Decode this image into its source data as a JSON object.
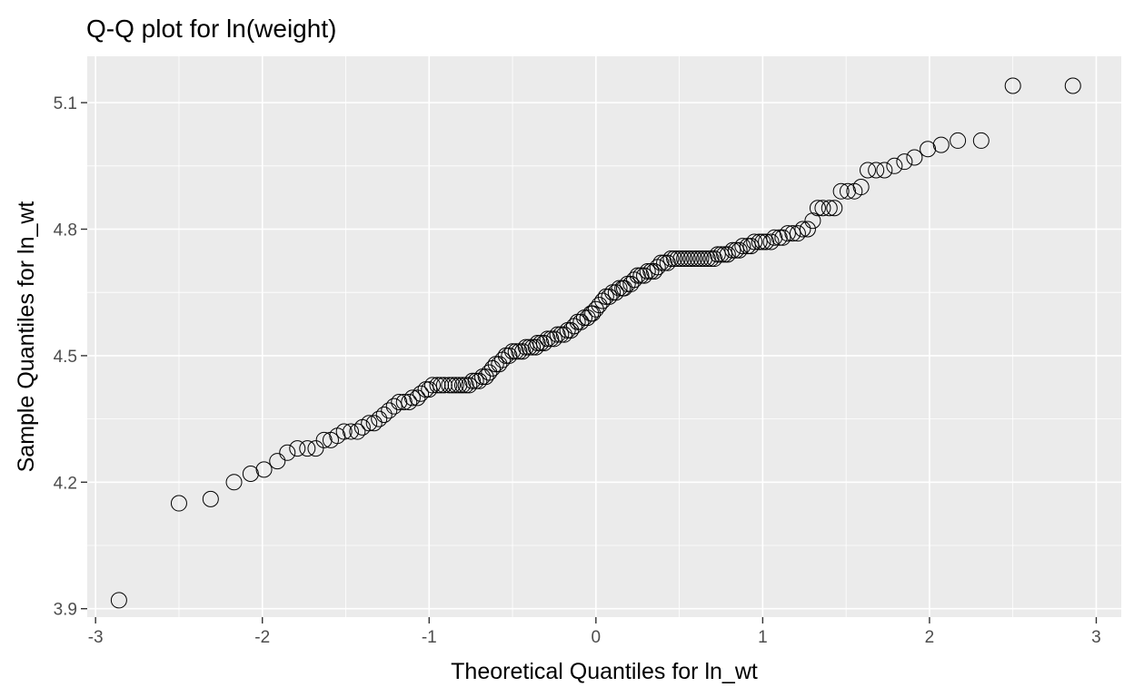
{
  "chart_data": {
    "type": "scatter",
    "title": "Q-Q plot for ln(weight)",
    "xlabel": "Theoretical Quantiles for ln_wt",
    "ylabel": "Sample Quantiles for ln_wt",
    "xlim": [
      -3.05,
      3.15
    ],
    "ylim": [
      3.88,
      5.21
    ],
    "x_ticks": [
      -3,
      -2,
      -1,
      0,
      1,
      2,
      3
    ],
    "x_tick_labels": [
      "-3",
      "-2",
      "-1",
      "0",
      "1",
      "2",
      "3"
    ],
    "y_ticks": [
      3.9,
      4.2,
      4.5,
      4.8,
      5.1
    ],
    "y_tick_labels": [
      "3.9",
      "4.2",
      "4.5",
      "4.8",
      "5.1"
    ],
    "grid": true,
    "legend": "none",
    "colors": {
      "panel": "#ebebeb",
      "grid": "#ffffff",
      "point_stroke": "#000000"
    },
    "points": [
      {
        "x": -2.86,
        "y": 3.92
      },
      {
        "x": -2.5,
        "y": 4.15
      },
      {
        "x": -2.31,
        "y": 4.16
      },
      {
        "x": -2.17,
        "y": 4.2
      },
      {
        "x": -2.07,
        "y": 4.22
      },
      {
        "x": -1.99,
        "y": 4.23
      },
      {
        "x": -1.91,
        "y": 4.25
      },
      {
        "x": -1.85,
        "y": 4.27
      },
      {
        "x": -1.79,
        "y": 4.28
      },
      {
        "x": -1.73,
        "y": 4.28
      },
      {
        "x": -1.68,
        "y": 4.28
      },
      {
        "x": -1.63,
        "y": 4.3
      },
      {
        "x": -1.59,
        "y": 4.3
      },
      {
        "x": -1.55,
        "y": 4.31
      },
      {
        "x": -1.51,
        "y": 4.32
      },
      {
        "x": -1.47,
        "y": 4.32
      },
      {
        "x": -1.43,
        "y": 4.32
      },
      {
        "x": -1.4,
        "y": 4.33
      },
      {
        "x": -1.36,
        "y": 4.34
      },
      {
        "x": -1.33,
        "y": 4.34
      },
      {
        "x": -1.3,
        "y": 4.35
      },
      {
        "x": -1.27,
        "y": 4.36
      },
      {
        "x": -1.24,
        "y": 4.37
      },
      {
        "x": -1.21,
        "y": 4.38
      },
      {
        "x": -1.18,
        "y": 4.39
      },
      {
        "x": -1.15,
        "y": 4.39
      },
      {
        "x": -1.12,
        "y": 4.39
      },
      {
        "x": -1.1,
        "y": 4.4
      },
      {
        "x": -1.07,
        "y": 4.4
      },
      {
        "x": -1.05,
        "y": 4.41
      },
      {
        "x": -1.02,
        "y": 4.42
      },
      {
        "x": -1.0,
        "y": 4.42
      },
      {
        "x": -0.98,
        "y": 4.43
      },
      {
        "x": -0.95,
        "y": 4.43
      },
      {
        "x": -0.93,
        "y": 4.43
      },
      {
        "x": -0.91,
        "y": 4.43
      },
      {
        "x": -0.88,
        "y": 4.43
      },
      {
        "x": -0.86,
        "y": 4.43
      },
      {
        "x": -0.84,
        "y": 4.43
      },
      {
        "x": -0.82,
        "y": 4.43
      },
      {
        "x": -0.8,
        "y": 4.43
      },
      {
        "x": -0.78,
        "y": 4.43
      },
      {
        "x": -0.76,
        "y": 4.43
      },
      {
        "x": -0.74,
        "y": 4.44
      },
      {
        "x": -0.72,
        "y": 4.44
      },
      {
        "x": -0.7,
        "y": 4.44
      },
      {
        "x": -0.68,
        "y": 4.45
      },
      {
        "x": -0.66,
        "y": 4.45
      },
      {
        "x": -0.64,
        "y": 4.46
      },
      {
        "x": -0.62,
        "y": 4.47
      },
      {
        "x": -0.6,
        "y": 4.48
      },
      {
        "x": -0.58,
        "y": 4.48
      },
      {
        "x": -0.56,
        "y": 4.49
      },
      {
        "x": -0.54,
        "y": 4.5
      },
      {
        "x": -0.52,
        "y": 4.5
      },
      {
        "x": -0.5,
        "y": 4.51
      },
      {
        "x": -0.48,
        "y": 4.51
      },
      {
        "x": -0.46,
        "y": 4.51
      },
      {
        "x": -0.44,
        "y": 4.51
      },
      {
        "x": -0.42,
        "y": 4.52
      },
      {
        "x": -0.4,
        "y": 4.52
      },
      {
        "x": -0.38,
        "y": 4.52
      },
      {
        "x": -0.36,
        "y": 4.52
      },
      {
        "x": -0.35,
        "y": 4.53
      },
      {
        "x": -0.33,
        "y": 4.53
      },
      {
        "x": -0.31,
        "y": 4.53
      },
      {
        "x": -0.29,
        "y": 4.54
      },
      {
        "x": -0.27,
        "y": 4.54
      },
      {
        "x": -0.25,
        "y": 4.54
      },
      {
        "x": -0.23,
        "y": 4.55
      },
      {
        "x": -0.21,
        "y": 4.55
      },
      {
        "x": -0.19,
        "y": 4.55
      },
      {
        "x": -0.17,
        "y": 4.56
      },
      {
        "x": -0.15,
        "y": 4.56
      },
      {
        "x": -0.13,
        "y": 4.57
      },
      {
        "x": -0.11,
        "y": 4.58
      },
      {
        "x": -0.09,
        "y": 4.58
      },
      {
        "x": -0.07,
        "y": 4.59
      },
      {
        "x": -0.05,
        "y": 4.59
      },
      {
        "x": -0.03,
        "y": 4.6
      },
      {
        "x": -0.02,
        "y": 4.6
      },
      {
        "x": 0.0,
        "y": 4.61
      },
      {
        "x": 0.02,
        "y": 4.62
      },
      {
        "x": 0.04,
        "y": 4.63
      },
      {
        "x": 0.06,
        "y": 4.64
      },
      {
        "x": 0.08,
        "y": 4.64
      },
      {
        "x": 0.1,
        "y": 4.65
      },
      {
        "x": 0.12,
        "y": 4.65
      },
      {
        "x": 0.14,
        "y": 4.66
      },
      {
        "x": 0.16,
        "y": 4.66
      },
      {
        "x": 0.17,
        "y": 4.66
      },
      {
        "x": 0.19,
        "y": 4.67
      },
      {
        "x": 0.21,
        "y": 4.67
      },
      {
        "x": 0.23,
        "y": 4.68
      },
      {
        "x": 0.25,
        "y": 4.69
      },
      {
        "x": 0.27,
        "y": 4.69
      },
      {
        "x": 0.29,
        "y": 4.69
      },
      {
        "x": 0.31,
        "y": 4.7
      },
      {
        "x": 0.33,
        "y": 4.7
      },
      {
        "x": 0.35,
        "y": 4.7
      },
      {
        "x": 0.37,
        "y": 4.71
      },
      {
        "x": 0.39,
        "y": 4.72
      },
      {
        "x": 0.41,
        "y": 4.72
      },
      {
        "x": 0.43,
        "y": 4.72
      },
      {
        "x": 0.45,
        "y": 4.73
      },
      {
        "x": 0.47,
        "y": 4.73
      },
      {
        "x": 0.49,
        "y": 4.73
      },
      {
        "x": 0.51,
        "y": 4.73
      },
      {
        "x": 0.53,
        "y": 4.73
      },
      {
        "x": 0.55,
        "y": 4.73
      },
      {
        "x": 0.57,
        "y": 4.73
      },
      {
        "x": 0.59,
        "y": 4.73
      },
      {
        "x": 0.61,
        "y": 4.73
      },
      {
        "x": 0.63,
        "y": 4.73
      },
      {
        "x": 0.65,
        "y": 4.73
      },
      {
        "x": 0.67,
        "y": 4.73
      },
      {
        "x": 0.69,
        "y": 4.73
      },
      {
        "x": 0.71,
        "y": 4.73
      },
      {
        "x": 0.73,
        "y": 4.74
      },
      {
        "x": 0.75,
        "y": 4.74
      },
      {
        "x": 0.77,
        "y": 4.74
      },
      {
        "x": 0.79,
        "y": 4.74
      },
      {
        "x": 0.82,
        "y": 4.75
      },
      {
        "x": 0.84,
        "y": 4.75
      },
      {
        "x": 0.86,
        "y": 4.75
      },
      {
        "x": 0.88,
        "y": 4.76
      },
      {
        "x": 0.91,
        "y": 4.76
      },
      {
        "x": 0.93,
        "y": 4.76
      },
      {
        "x": 0.95,
        "y": 4.77
      },
      {
        "x": 0.98,
        "y": 4.77
      },
      {
        "x": 1.0,
        "y": 4.77
      },
      {
        "x": 1.02,
        "y": 4.77
      },
      {
        "x": 1.05,
        "y": 4.77
      },
      {
        "x": 1.07,
        "y": 4.78
      },
      {
        "x": 1.1,
        "y": 4.78
      },
      {
        "x": 1.12,
        "y": 4.78
      },
      {
        "x": 1.15,
        "y": 4.79
      },
      {
        "x": 1.18,
        "y": 4.79
      },
      {
        "x": 1.21,
        "y": 4.79
      },
      {
        "x": 1.24,
        "y": 4.8
      },
      {
        "x": 1.27,
        "y": 4.8
      },
      {
        "x": 1.3,
        "y": 4.82
      },
      {
        "x": 1.33,
        "y": 4.85
      },
      {
        "x": 1.36,
        "y": 4.85
      },
      {
        "x": 1.4,
        "y": 4.85
      },
      {
        "x": 1.43,
        "y": 4.85
      },
      {
        "x": 1.47,
        "y": 4.89
      },
      {
        "x": 1.51,
        "y": 4.89
      },
      {
        "x": 1.55,
        "y": 4.89
      },
      {
        "x": 1.59,
        "y": 4.9
      },
      {
        "x": 1.63,
        "y": 4.94
      },
      {
        "x": 1.68,
        "y": 4.94
      },
      {
        "x": 1.73,
        "y": 4.94
      },
      {
        "x": 1.79,
        "y": 4.95
      },
      {
        "x": 1.85,
        "y": 4.96
      },
      {
        "x": 1.91,
        "y": 4.97
      },
      {
        "x": 1.99,
        "y": 4.99
      },
      {
        "x": 2.07,
        "y": 5.0
      },
      {
        "x": 2.17,
        "y": 5.01
      },
      {
        "x": 2.31,
        "y": 5.01
      },
      {
        "x": 2.5,
        "y": 5.14
      },
      {
        "x": 2.86,
        "y": 5.14
      }
    ]
  }
}
